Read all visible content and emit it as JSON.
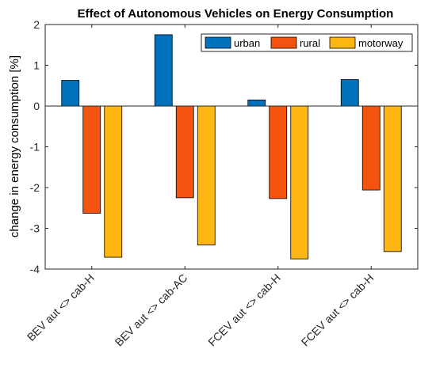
{
  "chart_data": {
    "type": "bar",
    "title": "Effect of Autonomous Vehicles on Energy Consumption",
    "xlabel": "",
    "ylabel": "change in energy consumption [%]",
    "ylim": [
      -4,
      2
    ],
    "yticks": [
      "2",
      "1",
      "0",
      "-1",
      "-2",
      "-3",
      "-4"
    ],
    "ytick_values": [
      2,
      1,
      0,
      -1,
      -2,
      -3,
      -4
    ],
    "categories": [
      "BEV aut <> cab-H",
      "BEV aut <> cab-AC",
      "FCEV aut <> cab-H",
      "FCEV aut <> cab-H"
    ],
    "series": [
      {
        "name": "urban",
        "color": "#0072BD",
        "values": [
          0.63,
          1.75,
          0.15,
          0.65
        ]
      },
      {
        "name": "rural",
        "color": "#F25410",
        "values": [
          -2.63,
          -2.25,
          -2.27,
          -2.06
        ]
      },
      {
        "name": "motorway",
        "color": "#FDB612",
        "values": [
          -3.71,
          -3.41,
          -3.75,
          -3.57
        ]
      }
    ],
    "legend_position": "top-right",
    "grid": false
  }
}
